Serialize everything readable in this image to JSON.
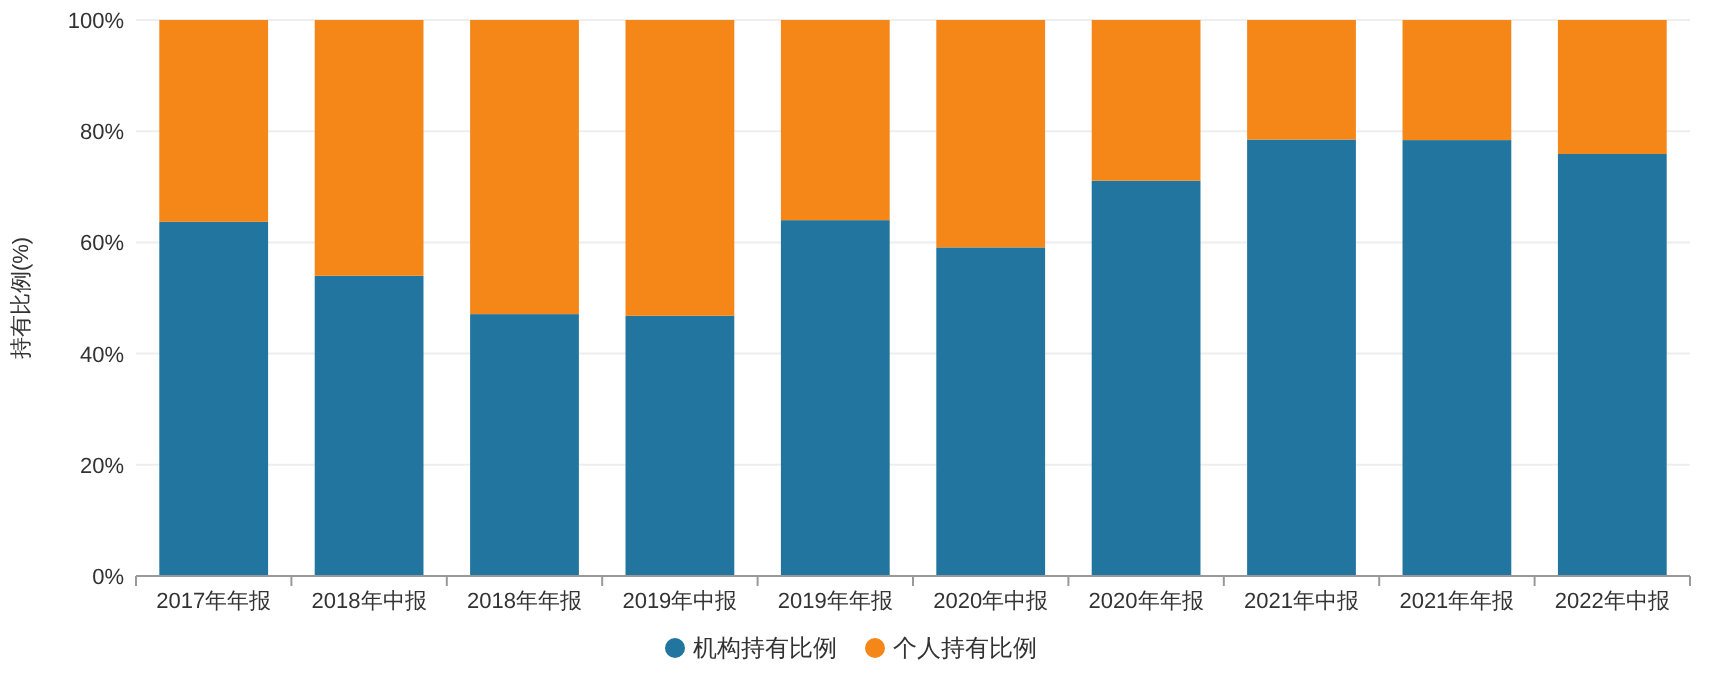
{
  "chart_data": {
    "type": "bar",
    "stacked": true,
    "ylabel": "持有比例(%)",
    "categories": [
      "2017年年报",
      "2018年中报",
      "2018年年报",
      "2019年中报",
      "2019年年报",
      "2020年中报",
      "2020年年报",
      "2021年中报",
      "2021年年报",
      "2022年中报"
    ],
    "series": [
      {
        "name": "机构持有比例",
        "color": "#21759f",
        "values": [
          63.7,
          54.0,
          47.1,
          46.8,
          64.0,
          59.1,
          71.1,
          78.5,
          78.4,
          75.9
        ]
      },
      {
        "name": "个人持有比例",
        "color": "#f58718",
        "values": [
          36.3,
          46.0,
          52.9,
          53.2,
          36.0,
          40.9,
          28.9,
          21.5,
          21.6,
          24.1
        ]
      }
    ],
    "ylim": [
      0,
      100
    ],
    "yticks": [
      {
        "value": 0,
        "label": "0%"
      },
      {
        "value": 20,
        "label": "20%"
      },
      {
        "value": 40,
        "label": "40%"
      },
      {
        "value": 60,
        "label": "60%"
      },
      {
        "value": 80,
        "label": "80%"
      },
      {
        "value": 100,
        "label": "100%"
      }
    ],
    "grid": "y",
    "legend": "bottom"
  }
}
